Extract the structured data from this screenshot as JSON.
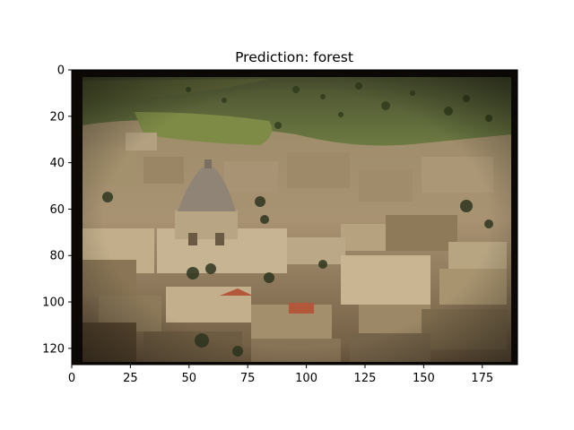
{
  "chart_data": {
    "type": "image",
    "title": "Prediction: forest",
    "xlim": [
      0,
      190
    ],
    "ylim": [
      127,
      0
    ],
    "xticks": [
      0,
      25,
      50,
      75,
      100,
      125,
      150,
      175
    ],
    "yticks": [
      0,
      20,
      40,
      60,
      80,
      100,
      120
    ],
    "image_subject": "aerial view of a hillside town with a domed basilica, dense stone buildings and a green hillside",
    "image_colors": {
      "hillside": "#5e6a3a",
      "field": "#7d8b46",
      "buildings": "#b8a27e",
      "dome": "#8f8476",
      "shadow": "#3a2e1e",
      "roofs_red": "#b4583c",
      "frame": "#0b0806"
    }
  }
}
